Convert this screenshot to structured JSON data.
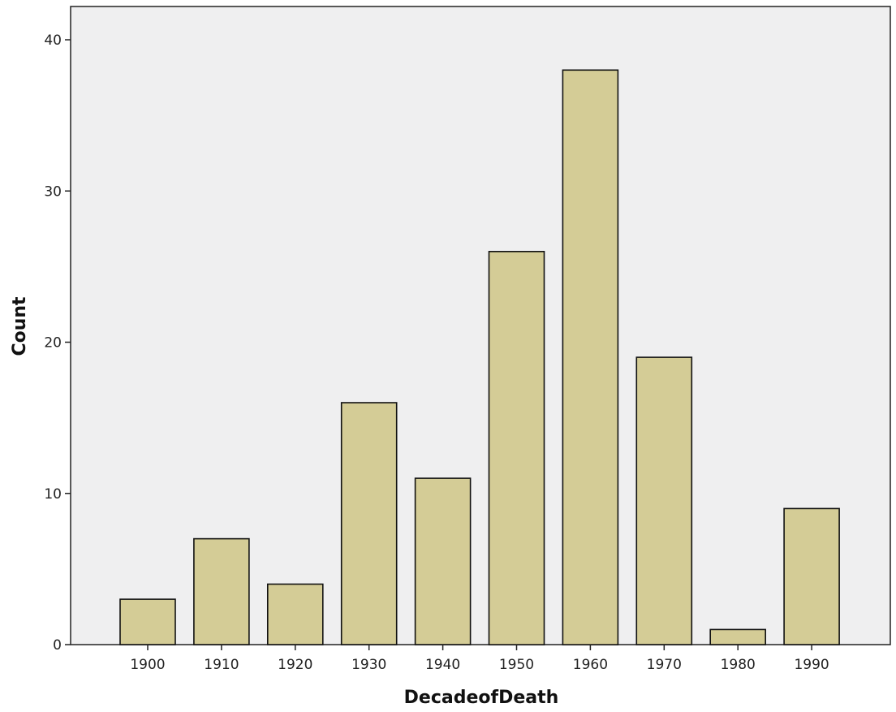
{
  "chart_data": {
    "type": "bar",
    "xlabel": "DecadeofDeath",
    "ylabel": "Count",
    "categories": [
      "1900",
      "1910",
      "1920",
      "1930",
      "1940",
      "1950",
      "1960",
      "1970",
      "1980",
      "1990"
    ],
    "values": [
      3,
      7,
      4,
      16,
      11,
      26,
      38,
      19,
      1,
      9
    ],
    "ylim": [
      0,
      42
    ],
    "yticks": [
      0,
      10,
      20,
      30,
      40
    ],
    "grid": false,
    "legend": "none",
    "colors": {
      "plot_background": "#efeff0",
      "bar_fill": "#d4cc96",
      "bar_stroke": "#111111",
      "axis": "#222222"
    }
  }
}
